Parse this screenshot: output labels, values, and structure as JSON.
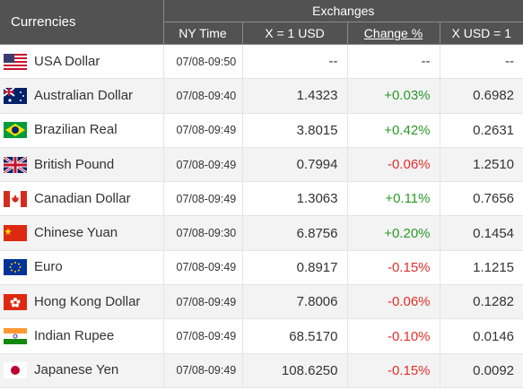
{
  "table": {
    "header": {
      "currencies": "Currencies",
      "exchanges": "Exchanges",
      "columns": [
        "NY Time",
        "X = 1 USD",
        "Change %",
        "X USD = 1"
      ]
    },
    "rows": [
      [
        "USA Dollar",
        "07/08-09:50",
        "--",
        "--",
        "--"
      ],
      [
        "Australian Dollar",
        "07/08-09:40",
        "1.4323",
        "+0.03%",
        "0.6982"
      ],
      [
        "Brazilian Real",
        "07/08-09:49",
        "3.8015",
        "+0.42%",
        "0.2631"
      ],
      [
        "British Pound",
        "07/08-09:49",
        "0.7994",
        "-0.06%",
        "1.2510"
      ],
      [
        "Canadian Dollar",
        "07/08-09:49",
        "1.3063",
        "+0.11%",
        "0.7656"
      ],
      [
        "Chinese Yuan",
        "07/08-09:30",
        "6.8756",
        "+0.20%",
        "0.1454"
      ],
      [
        "Euro",
        "07/08-09:49",
        "0.8917",
        "-0.15%",
        "1.1215"
      ],
      [
        "Hong Kong Dollar",
        "07/08-09:49",
        "7.8006",
        "-0.06%",
        "0.1282"
      ],
      [
        "Indian Rupee",
        "07/08-09:49",
        "68.5170",
        "-0.10%",
        "0.0146"
      ],
      [
        "Japanese Yen",
        "07/08-09:49",
        "108.6250",
        "-0.15%",
        "0.0092"
      ]
    ]
  }
}
